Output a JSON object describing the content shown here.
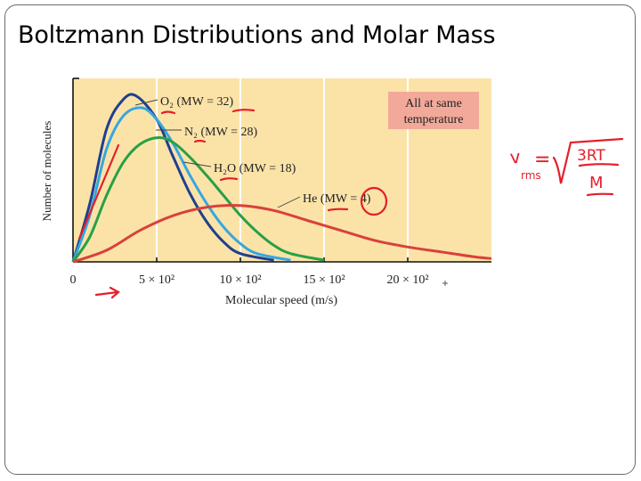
{
  "slide": {
    "title": "Boltzmann Distributions and Molar Mass"
  },
  "chart_data": {
    "type": "line",
    "title": "",
    "xlabel": "Molecular speed (m/s)",
    "ylabel": "Number of molecules",
    "xlim": [
      0,
      2500
    ],
    "ylim": [
      0,
      1
    ],
    "x_ticks": [
      {
        "value": 0,
        "label": "0"
      },
      {
        "value": 500,
        "label": "5 × 10²"
      },
      {
        "value": 1000,
        "label": "10 × 10²"
      },
      {
        "value": 1500,
        "label": "15 × 10²"
      },
      {
        "value": 2000,
        "label": "20 × 10²"
      }
    ],
    "grid": "vertical",
    "background_color": "#fbe3a8",
    "series": [
      {
        "name": "O₂ (MW = 32)",
        "molar_mass": 32,
        "color": "#1f3f8f",
        "x": [
          0,
          100,
          200,
          300,
          380,
          500,
          600,
          700,
          800,
          900,
          1000,
          1200
        ],
        "y": [
          0,
          0.35,
          0.8,
          0.98,
          1.0,
          0.86,
          0.63,
          0.41,
          0.24,
          0.12,
          0.05,
          0.01
        ]
      },
      {
        "name": "N₂ (MW = 28)",
        "molar_mass": 28,
        "color": "#35a7e0",
        "x": [
          0,
          100,
          200,
          300,
          410,
          500,
          600,
          700,
          800,
          900,
          1000,
          1100,
          1300
        ],
        "y": [
          0,
          0.28,
          0.68,
          0.88,
          0.93,
          0.86,
          0.71,
          0.52,
          0.35,
          0.21,
          0.11,
          0.05,
          0.01
        ]
      },
      {
        "name": "H₂O (MW = 18)",
        "molar_mass": 18,
        "color": "#27a045",
        "x": [
          0,
          100,
          200,
          300,
          400,
          510,
          600,
          700,
          800,
          900,
          1000,
          1100,
          1200,
          1300,
          1500
        ],
        "y": [
          0,
          0.15,
          0.4,
          0.6,
          0.71,
          0.75,
          0.72,
          0.63,
          0.52,
          0.4,
          0.28,
          0.18,
          0.1,
          0.05,
          0.01
        ]
      },
      {
        "name": "He (MW = 4)",
        "molar_mass": 4,
        "color": "#d9413b",
        "x": [
          0,
          200,
          400,
          600,
          800,
          1000,
          1200,
          1400,
          1600,
          1800,
          2000,
          2200,
          2400,
          2500
        ],
        "y": [
          0,
          0.07,
          0.19,
          0.28,
          0.33,
          0.34,
          0.31,
          0.25,
          0.19,
          0.13,
          0.09,
          0.06,
          0.03,
          0.02
        ]
      }
    ],
    "annotation": {
      "lines": [
        "All at same",
        "temperature"
      ],
      "color": "#f2a99a"
    }
  },
  "handwriting": {
    "color": "#e51e2a",
    "formula": {
      "lhs": "v",
      "lhs_sub": "rms",
      "equals": "=",
      "numerator": "3RT",
      "denominator": "M"
    }
  }
}
